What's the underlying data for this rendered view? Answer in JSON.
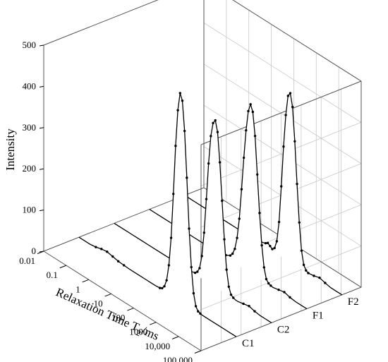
{
  "chart_data": {
    "type": "line",
    "projection": "3d-waterfall",
    "x_axis": {
      "label_main": "Relaxation Time T",
      "label_sub": "2",
      "label_tail": "/ms",
      "scale": "log",
      "range": [
        0.01,
        100000
      ],
      "tick_values": [
        0.01,
        0.1,
        1,
        10,
        100,
        1000,
        10000,
        100000
      ],
      "tick_labels": [
        "0.01",
        "0.1",
        "1",
        "10",
        "100",
        "1000",
        "10,000",
        "100,000"
      ]
    },
    "y_axis": {
      "label": "Intensity",
      "range": [
        0,
        500
      ],
      "tick_values": [
        0,
        100,
        200,
        300,
        400,
        500
      ],
      "tick_labels": [
        "0",
        "100",
        "200",
        "300",
        "400",
        "500"
      ]
    },
    "grid": true,
    "x_log_points": [
      -2,
      -1.75,
      -1.5,
      -1.25,
      -1,
      -0.75,
      -0.5,
      -0.25,
      0,
      0.25,
      0.5,
      0.75,
      1,
      1.2,
      1.4,
      1.6,
      1.7,
      1.8,
      1.9,
      2.0,
      2.1,
      2.2,
      2.3,
      2.4,
      2.5,
      2.6,
      2.7,
      2.8,
      2.9,
      3.0,
      3.1,
      3.2,
      3.3,
      3.4,
      3.5,
      3.75,
      4.0,
      4.25,
      4.5,
      4.75,
      5.0
    ],
    "series": [
      {
        "name": "C1",
        "values": [
          0,
          0,
          0,
          2,
          6,
          8,
          5,
          2,
          1,
          0,
          0,
          0,
          0,
          0,
          0,
          1,
          4,
          12,
          30,
          70,
          140,
          250,
          370,
          460,
          505,
          490,
          420,
          310,
          190,
          100,
          40,
          12,
          3,
          1,
          0,
          0,
          0,
          0,
          0,
          0,
          0
        ]
      },
      {
        "name": "C2",
        "values": [
          0,
          0,
          0,
          0,
          0,
          0,
          0,
          0,
          0,
          0,
          0,
          0,
          0,
          0,
          1,
          4,
          10,
          22,
          55,
          115,
          200,
          290,
          360,
          395,
          405,
          380,
          310,
          220,
          130,
          60,
          22,
          6,
          2,
          0,
          0,
          3,
          6,
          2,
          0,
          0,
          0
        ]
      },
      {
        "name": "F1",
        "values": [
          0,
          0,
          0,
          0,
          0,
          0,
          0,
          0,
          0,
          0,
          0,
          0,
          0,
          2,
          6,
          12,
          20,
          35,
          65,
          115,
          190,
          270,
          340,
          390,
          410,
          395,
          340,
          250,
          160,
          85,
          35,
          10,
          3,
          1,
          0,
          3,
          6,
          2,
          0,
          0,
          0
        ]
      },
      {
        "name": "F2",
        "values": [
          0,
          0,
          0,
          0,
          0,
          0,
          0,
          0,
          0,
          0,
          0,
          0,
          0,
          1,
          4,
          8,
          12,
          8,
          4,
          10,
          30,
          80,
          170,
          270,
          350,
          400,
          410,
          380,
          300,
          200,
          110,
          45,
          14,
          4,
          1,
          3,
          7,
          3,
          0,
          0,
          0
        ]
      }
    ]
  }
}
